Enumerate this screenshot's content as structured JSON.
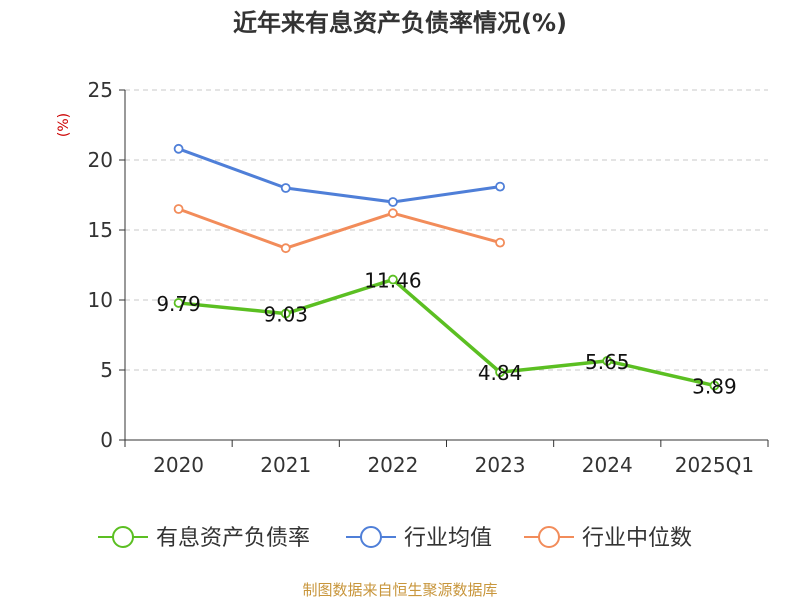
{
  "title": "近年来有息资产负债率情况(%)",
  "source": "制图数据来自恒生聚源数据库",
  "chart_data": {
    "type": "line",
    "title": "近年来有息资产负债率情况(%)",
    "categories": [
      "2020",
      "2021",
      "2022",
      "2023",
      "2024",
      "2025Q1"
    ],
    "ylabel": "(%)",
    "unit_label_color": "#cc0000",
    "ylim": [
      0,
      25
    ],
    "yticks": [
      0,
      5,
      10,
      15,
      20,
      25
    ],
    "grid": true,
    "legend_position": "bottom",
    "series": [
      {
        "name": "有息资产负债率",
        "color": "#5bbf22",
        "values": [
          9.79,
          9.03,
          11.46,
          4.84,
          5.65,
          3.89
        ],
        "labels": [
          "9.79",
          "9.03",
          "11.46",
          "4.84",
          "5.65",
          "3.89"
        ]
      },
      {
        "name": "行业均值",
        "color": "#4f7fd8",
        "values": [
          20.8,
          18.0,
          17.0,
          18.1,
          null,
          null
        ]
      },
      {
        "name": "行业中位数",
        "color": "#f28c5a",
        "values": [
          16.5,
          13.7,
          16.2,
          14.1,
          null,
          null
        ]
      }
    ]
  }
}
